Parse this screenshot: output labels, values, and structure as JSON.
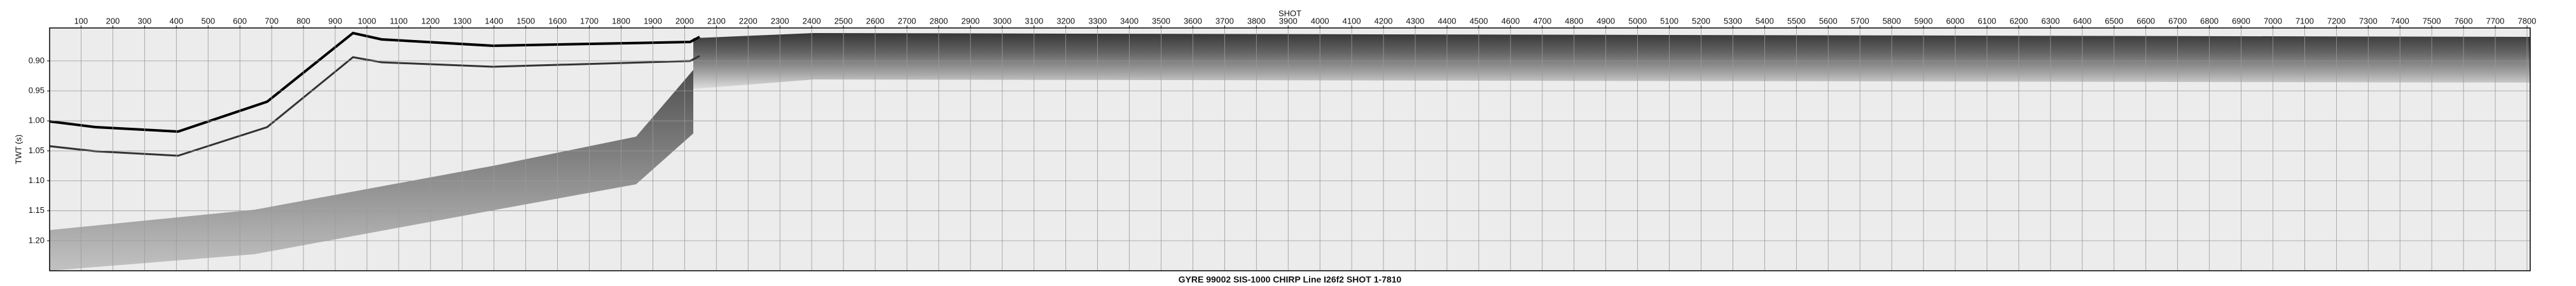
{
  "chart_data": {
    "type": "seismic",
    "title": "GYRE 99002 SIS-1000 CHIRP Line I26f2 SHOT 1-7810",
    "x_label": "SHOT",
    "y_label": "TWT (s)",
    "xlim": [
      1,
      7810
    ],
    "xticks": [
      100,
      200,
      300,
      400,
      500,
      600,
      700,
      800,
      900,
      1000,
      1100,
      1200,
      1300,
      1400,
      1500,
      1600,
      1700,
      1800,
      1900,
      2000,
      2100,
      2200,
      2300,
      2400,
      2500,
      2600,
      2700,
      2800,
      2900,
      3000,
      3100,
      3200,
      3300,
      3400,
      3500,
      3600,
      3700,
      3800,
      3900,
      4000,
      4100,
      4200,
      4300,
      4400,
      4500,
      4600,
      4700,
      4800,
      4900,
      5000,
      5100,
      5200,
      5300,
      5400,
      5500,
      5600,
      5700,
      5800,
      5900,
      6000,
      6100,
      6200,
      6300,
      6400,
      6500,
      6600,
      6700,
      6800,
      6900,
      7000,
      7100,
      7200,
      7300,
      7400,
      7500,
      7600,
      7700,
      7800
    ],
    "ylim": [
      0.845,
      1.25
    ],
    "y_inverted": true,
    "yticks": [
      {
        "value": 0.9,
        "label": "0.90"
      },
      0.95,
      {
        "value": 1,
        "label": "1.00"
      },
      1.05,
      {
        "value": 1.1,
        "label": "1.10"
      },
      1.15,
      {
        "value": 1.2,
        "label": "1.20"
      }
    ],
    "grid": true,
    "grid_color": "#9a9a9a"
  }
}
